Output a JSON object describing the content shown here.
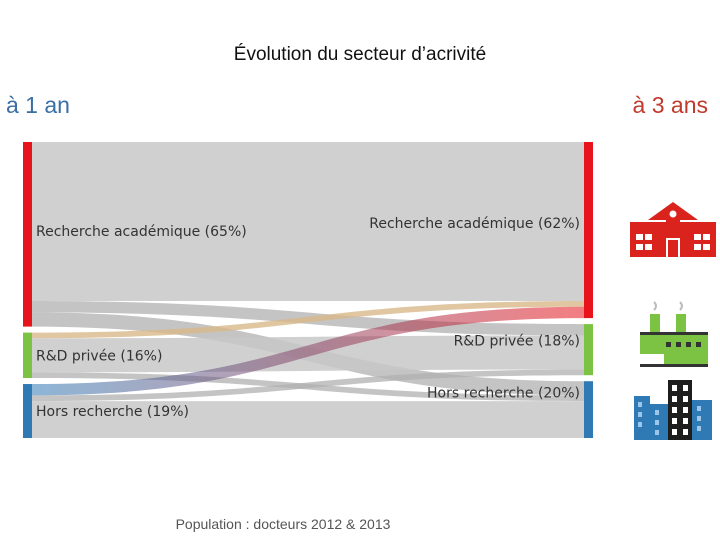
{
  "title": "Évolution du secteur d’acrivité",
  "left_heading": "à 1 an",
  "right_heading": "à 3 ans",
  "footer": "Population : docteurs 2012 & 2013",
  "colors": {
    "academic": "#e8141b",
    "private": "#7cc243",
    "outside": "#2f79b5",
    "flow": "#c8c8c8"
  },
  "icons": [
    "school-building-icon",
    "factory-icon",
    "office-tower-icon"
  ],
  "sankey": {
    "left_nodes": [
      {
        "id": "academic",
        "label": "Recherche académique (65%)",
        "value": 65
      },
      {
        "id": "private",
        "label": "R&D privée (16%)",
        "value": 16
      },
      {
        "id": "outside",
        "label": "Hors recherche (19%)",
        "value": 19
      }
    ],
    "right_nodes": [
      {
        "id": "academic",
        "label": "Recherche académique (62%)",
        "value": 62
      },
      {
        "id": "private",
        "label": "R&D privée (18%)",
        "value": 18
      },
      {
        "id": "outside",
        "label": "Hors recherche (20%)",
        "value": 20
      }
    ],
    "flows": [
      {
        "from": "academic",
        "to": "academic",
        "value": 56
      },
      {
        "from": "academic",
        "to": "private",
        "value": 4
      },
      {
        "from": "academic",
        "to": "outside",
        "value": 5
      },
      {
        "from": "private",
        "to": "academic",
        "value": 2
      },
      {
        "from": "private",
        "to": "private",
        "value": 12
      },
      {
        "from": "private",
        "to": "outside",
        "value": 2
      },
      {
        "from": "outside",
        "to": "academic",
        "value": 4
      },
      {
        "from": "outside",
        "to": "private",
        "value": 2
      },
      {
        "from": "outside",
        "to": "outside",
        "value": 13
      }
    ]
  }
}
